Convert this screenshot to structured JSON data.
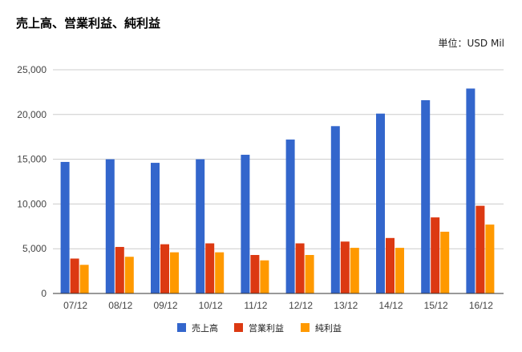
{
  "chart_data": {
    "type": "bar",
    "title": "売上高、営業利益、純利益",
    "unit_label": "単位：USD Mil",
    "categories": [
      "07/12",
      "08/12",
      "09/12",
      "10/12",
      "11/12",
      "12/12",
      "13/12",
      "14/12",
      "15/12",
      "16/12"
    ],
    "series": [
      {
        "name": "売上高",
        "color": "#3366cc",
        "values": [
          14700,
          15000,
          14600,
          15000,
          15500,
          17200,
          18700,
          20100,
          21600,
          22900
        ]
      },
      {
        "name": "営業利益",
        "color": "#dc3912",
        "values": [
          3900,
          5200,
          5500,
          5600,
          4300,
          5600,
          5800,
          6200,
          8500,
          9800
        ]
      },
      {
        "name": "純利益",
        "color": "#ff9900",
        "values": [
          3200,
          4100,
          4600,
          4600,
          3700,
          4300,
          5100,
          5100,
          6900,
          7700
        ]
      }
    ],
    "ylim": [
      0,
      25000
    ],
    "yticks": [
      "0",
      "5,000",
      "10,000",
      "15,000",
      "20,000",
      "25,000"
    ],
    "ytick_values": [
      0,
      5000,
      10000,
      15000,
      20000,
      25000
    ],
    "grid": true,
    "legend_position": "bottom"
  }
}
